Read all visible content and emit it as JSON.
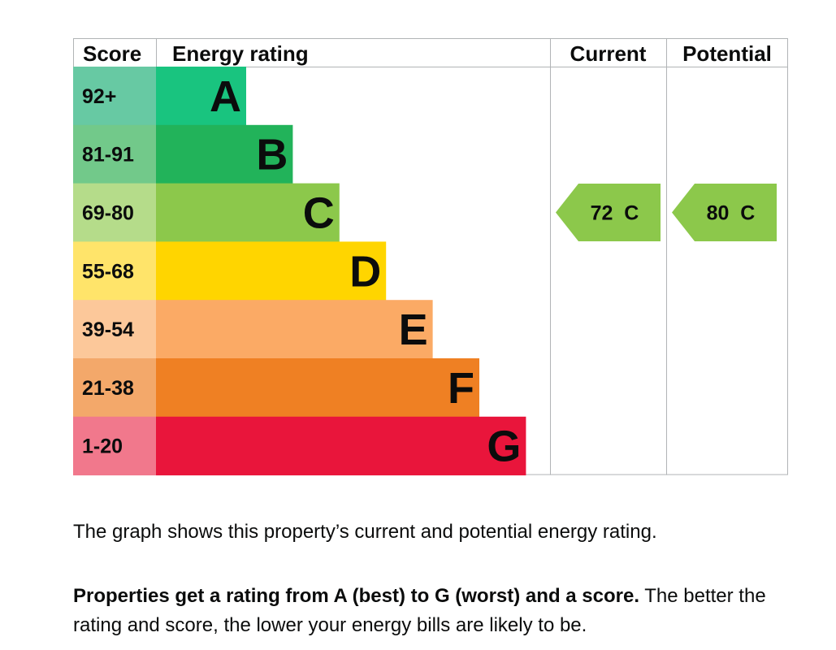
{
  "chart_data": {
    "type": "table",
    "title": "Energy rating chart",
    "headers": {
      "score": "Score",
      "rating": "Energy rating",
      "current": "Current",
      "potential": "Potential"
    },
    "bands": [
      {
        "letter": "A",
        "score": "92+",
        "color": "#19c47f",
        "score_color": "#67c9a3"
      },
      {
        "letter": "B",
        "score": "81-91",
        "color": "#22b35a",
        "score_color": "#72c98a"
      },
      {
        "letter": "C",
        "score": "69-80",
        "color": "#8cc84b",
        "score_color": "#b5dc8a"
      },
      {
        "letter": "D",
        "score": "55-68",
        "color": "#ffd500",
        "score_color": "#ffe46a"
      },
      {
        "letter": "E",
        "score": "39-54",
        "color": "#fbaa65",
        "score_color": "#fcc89a"
      },
      {
        "letter": "F",
        "score": "21-38",
        "color": "#ef8023",
        "score_color": "#f3a86a"
      },
      {
        "letter": "G",
        "score": "1-20",
        "color": "#e9153b",
        "score_color": "#f1788c"
      }
    ],
    "current": {
      "value": 72,
      "band": "C",
      "label": "72  C"
    },
    "potential": {
      "value": 80,
      "band": "C",
      "label": "80  C"
    }
  },
  "description": {
    "line1": "The graph shows this property’s current and potential energy rating.",
    "bold": "Properties get a rating from A (best) to G (worst) and a score.",
    "rest": " The better the rating and score, the lower your energy bills are likely to be."
  }
}
